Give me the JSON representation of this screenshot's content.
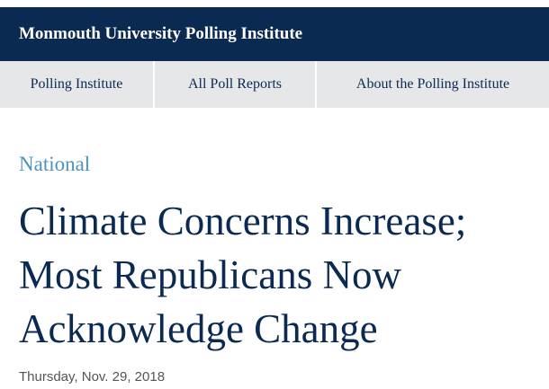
{
  "header": {
    "title": "Monmouth University Polling Institute"
  },
  "nav": {
    "items": [
      "Polling Institute",
      "All Poll Reports",
      "About the Polling Institute"
    ]
  },
  "article": {
    "category": "National",
    "title_lines": [
      "Climate Concerns Increase;",
      "Most Republicans Now",
      "Acknowledge Change"
    ],
    "date": "Thursday, Nov. 29, 2018"
  }
}
